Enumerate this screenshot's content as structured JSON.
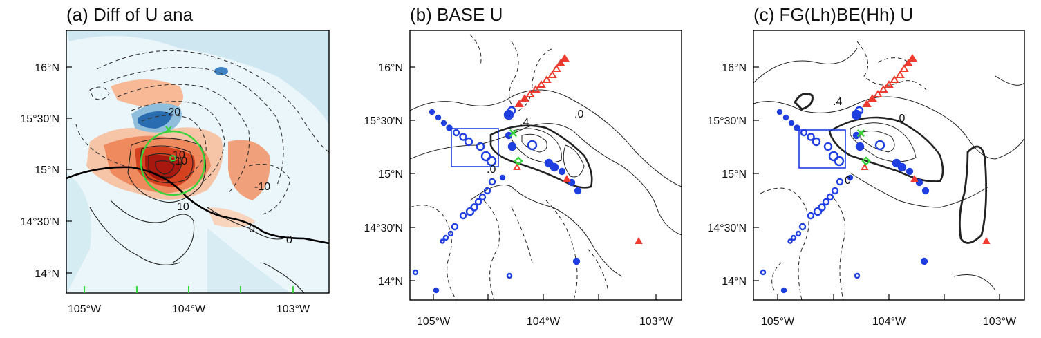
{
  "panels": [
    {
      "title": "(a) Diff of U ana",
      "lat_ticks": [
        "16°N",
        "15°30'N",
        "15°N",
        "14°30'N",
        "14°N"
      ],
      "lon_ticks": [
        "105°W",
        "104°W",
        "103°W"
      ],
      "contour_labels": [
        "-20",
        "-10",
        "-10",
        "10",
        "10",
        "0",
        "0"
      ]
    },
    {
      "title": "(b) BASE U",
      "lat_ticks": [
        "16°N",
        "15°30'N",
        "15°N",
        "14°30'N",
        "14°N"
      ],
      "lon_ticks": [
        "105°W",
        "104°W",
        "103°W"
      ],
      "contour_labels": [
        ".0",
        ".4",
        ".0"
      ]
    },
    {
      "title": "(c) FG(Lh)BE(Hh) U",
      "lat_ticks": [
        "16°N",
        "15°30'N",
        "15°N",
        "14°30'N",
        "14°N"
      ],
      "lon_ticks": [
        "105°W",
        "104°W",
        "103°W"
      ],
      "contour_labels": [
        ".4",
        ".0",
        "0"
      ]
    }
  ],
  "colors": {
    "positive_fill": "#e8572a",
    "negative_fill": "#3a79bc",
    "observation_blue": "#1f3fe0",
    "observation_red": "#ee3b2f",
    "storm_center": "#37d43a"
  }
}
